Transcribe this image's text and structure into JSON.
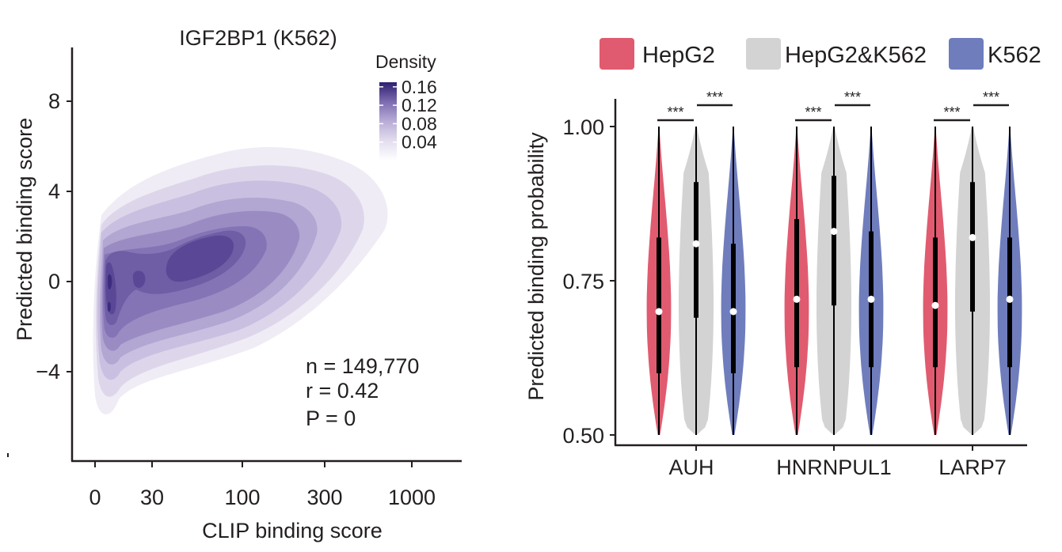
{
  "chart_data": [
    {
      "type": "density2d",
      "title": "IGF2BP1 (K562)",
      "xlabel": "CLIP binding score",
      "ylabel": "Predicted binding score",
      "x_ticks": [
        "0",
        "30",
        "100",
        "300",
        "1000"
      ],
      "y_ticks": [
        8,
        4,
        0,
        -4
      ],
      "ylim": [
        -7.5,
        10
      ],
      "legend": {
        "title": "Density",
        "labels": [
          "0.16",
          "0.12",
          "0.08",
          "0.04"
        ],
        "range": [
          0.0,
          0.17
        ]
      },
      "stats": [
        "n = 149,770",
        "r = 0.42",
        "P = 0"
      ],
      "colors": [
        "#efecf5",
        "#ddd6eb",
        "#c9bfe0",
        "#b2a6d2",
        "#9a8bc3",
        "#8574b5",
        "#6f5da5",
        "#5a4896",
        "#3c2c80"
      ]
    },
    {
      "type": "violin",
      "ylabel": "Predicted binding probability",
      "ylim": [
        0.5,
        1.0
      ],
      "y_ticks": [
        "0.50",
        "0.75",
        "1.00"
      ],
      "legend": [
        {
          "label": "HepG2",
          "color": "#e05b6f"
        },
        {
          "label": "HepG2&K562",
          "color": "#d3d3d3"
        },
        {
          "label": "K562",
          "color": "#6f7dbd"
        }
      ],
      "categories": [
        "AUH",
        "HNRNPUL1",
        "LARP7"
      ],
      "significance_label": "***",
      "groups": [
        {
          "category": "AUH",
          "violins": [
            {
              "series": "HepG2",
              "median": 0.7,
              "q1": 0.6,
              "q3": 0.82
            },
            {
              "series": "HepG2&K562",
              "median": 0.81,
              "q1": 0.69,
              "q3": 0.91
            },
            {
              "series": "K562",
              "median": 0.7,
              "q1": 0.6,
              "q3": 0.81
            }
          ]
        },
        {
          "category": "HNRNPUL1",
          "violins": [
            {
              "series": "HepG2",
              "median": 0.72,
              "q1": 0.61,
              "q3": 0.85
            },
            {
              "series": "HepG2&K562",
              "median": 0.83,
              "q1": 0.71,
              "q3": 0.92
            },
            {
              "series": "K562",
              "median": 0.72,
              "q1": 0.61,
              "q3": 0.83
            }
          ]
        },
        {
          "category": "LARP7",
          "violins": [
            {
              "series": "HepG2",
              "median": 0.71,
              "q1": 0.61,
              "q3": 0.82
            },
            {
              "series": "HepG2&K562",
              "median": 0.82,
              "q1": 0.7,
              "q3": 0.91
            },
            {
              "series": "K562",
              "median": 0.72,
              "q1": 0.61,
              "q3": 0.82
            }
          ]
        }
      ]
    }
  ]
}
